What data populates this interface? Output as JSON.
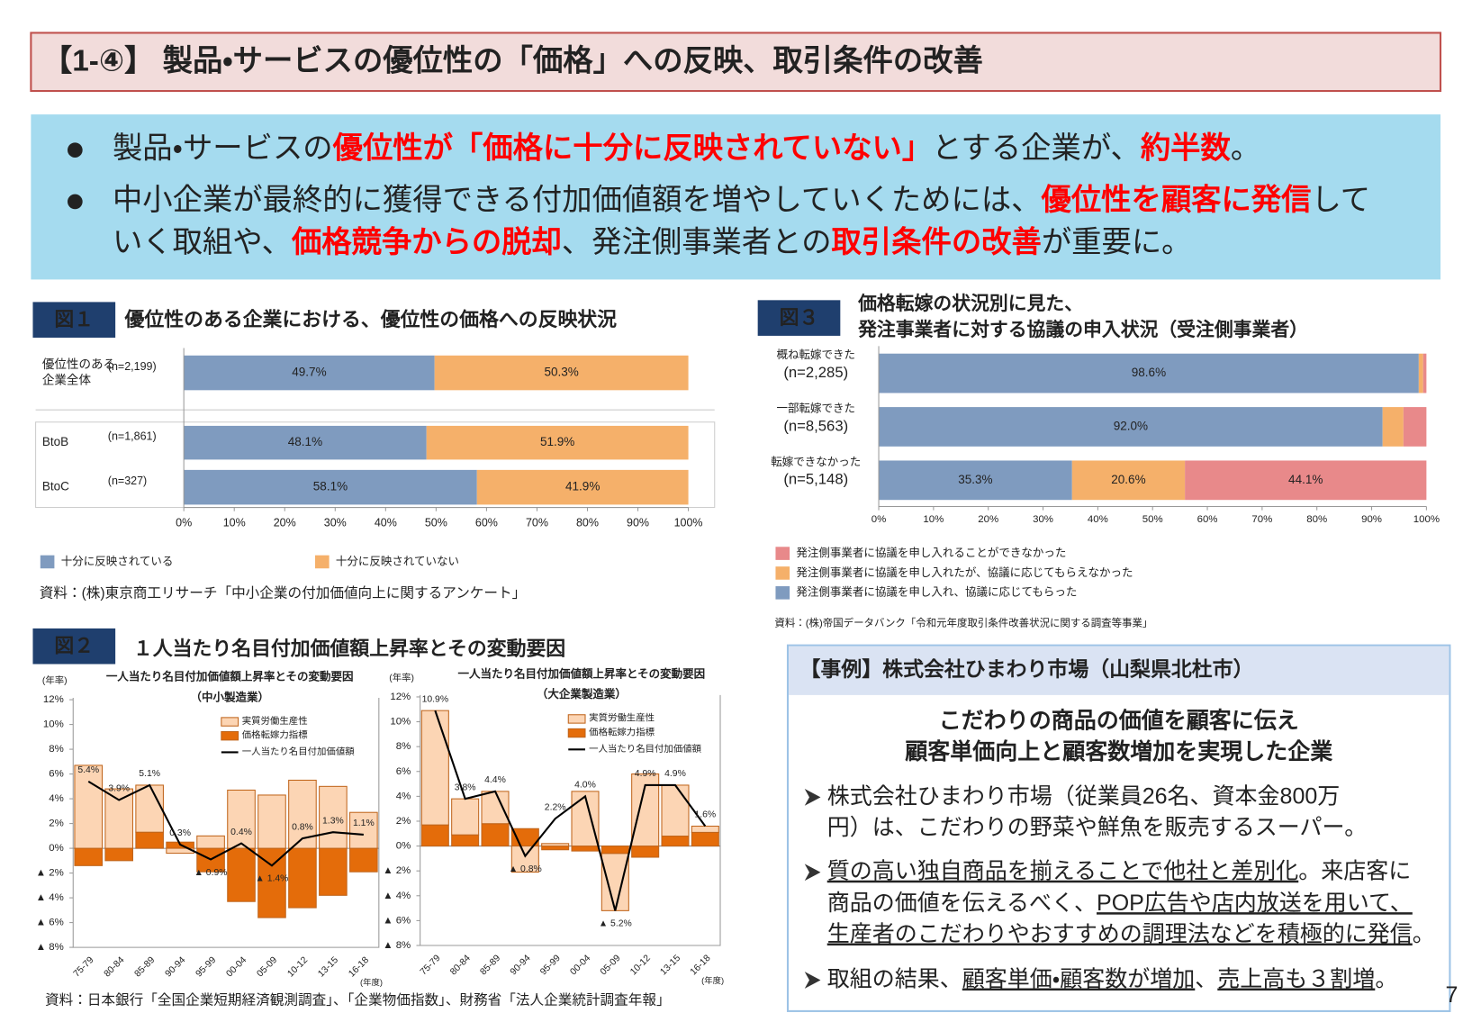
{
  "header": {
    "title": "【1-④】 製品・サービスの優位性の「価格」への反映、取引条件の改善"
  },
  "summary": {
    "bullets": [
      [
        [
          {
            "text": "製品・サービスの"
          },
          {
            "text": "優位性が「価格に十分に反映されていない」",
            "color": "#ff0000"
          },
          {
            "text": "とする企業が、"
          },
          {
            "text": "約半数",
            "color": "#ff0000"
          },
          {
            "text": "。"
          }
        ]
      ],
      [
        [
          {
            "text": "中小企業が最終的に獲得できる付加価値額を増やしていくためには、"
          },
          {
            "text": "優位性を顧客に発信",
            "color": "#ff0000"
          },
          {
            "text": "して"
          }
        ],
        [
          {
            "text": "いく取組や、"
          },
          {
            "text": "価格競争からの脱却",
            "color": "#ff0000"
          },
          {
            "text": "、発注側事業者との"
          },
          {
            "text": "取引条件の改善",
            "color": "#ff0000"
          },
          {
            "text": "が重要に。"
          }
        ]
      ]
    ]
  },
  "figures": [
    {
      "label": "図１",
      "title": [
        "優位性のある企業における、優位性の価格への反映状況"
      ],
      "source": "資料：(株)東京商工リサーチ「中小企業の付加価値向上に関するアンケート」"
    },
    {
      "label": "図３",
      "title": [
        "価格転嫁の状況別に見た、",
        "発注事業者に対する協議の申入状況（受注側事業者）"
      ],
      "source": "資料：(株)帝国データバンク「令和元年度取引条件改善状況に関する調査等事業」"
    },
    {
      "label": "図２",
      "title": [
        "１人当たり名目付加価値額上昇率とその変動要因"
      ],
      "source": "資料：日本銀行「全国企業短期経済観測調査」、「企業物価指数」、財務省「法人企業統計調査年報」"
    }
  ],
  "chart_data": [
    {
      "type": "bar",
      "orientation": "horizontal",
      "stacked": true,
      "categories": [
        [
          "優位性のある",
          "企業全体"
        ],
        [
          "BtoB"
        ],
        [
          "BtoC"
        ]
      ],
      "category_notes": [
        "(n=2,199)",
        "(n=1,861)",
        "(n=327)"
      ],
      "series": [
        {
          "name": "十分に反映されている",
          "color": "#7f9bbf",
          "values": [
            49.7,
            48.1,
            58.1
          ],
          "value_labels": [
            "49.7%",
            "48.1%",
            "58.1%"
          ]
        },
        {
          "name": "十分に反映されていない",
          "color": "#f5b06a",
          "values": [
            50.3,
            51.9,
            41.9
          ],
          "value_labels": [
            "50.3%",
            "51.9%",
            "41.9%"
          ]
        }
      ],
      "xlim": [
        0,
        100
      ],
      "xticks": [
        {
          "value": 0,
          "label": "0%"
        },
        {
          "value": 10,
          "label": "10%"
        },
        {
          "value": 20,
          "label": "20%"
        },
        {
          "value": 30,
          "label": "30%"
        },
        {
          "value": 40,
          "label": "40%"
        },
        {
          "value": 50,
          "label": "50%"
        },
        {
          "value": 60,
          "label": "60%"
        },
        {
          "value": 70,
          "label": "70%"
        },
        {
          "value": 80,
          "label": "80%"
        },
        {
          "value": 90,
          "label": "90%"
        },
        {
          "value": 100,
          "label": "100%"
        }
      ],
      "legend": "bottom"
    },
    {
      "type": "bar",
      "orientation": "horizontal",
      "stacked": true,
      "categories": [
        [
          "概ね転嫁できた",
          "(n=2,285)"
        ],
        [
          "一部転嫁できた",
          "(n=8,563)"
        ],
        [
          "転嫁できなかった",
          "(n=5,148)"
        ]
      ],
      "series": [
        {
          "name": "発注側事業者に協議を申し入れ、協議に応じてもらった",
          "color": "#7f9bbf",
          "values": [
            98.6,
            92.0,
            35.3
          ],
          "value_labels": [
            "98.6%",
            "92.0%",
            "35.3%"
          ]
        },
        {
          "name": "発注側事業者に協議を申し入れたが、協議に応じてもらえなかった",
          "color": "#f5b06a",
          "values": [
            0.8,
            3.8,
            20.6
          ],
          "value_labels": [
            null,
            null,
            "20.6%"
          ]
        },
        {
          "name": "発注側事業者に協議を申し入れることができなかった",
          "color": "#e8898a",
          "values": [
            0.6,
            4.2,
            44.1
          ],
          "value_labels": [
            null,
            null,
            "44.1%"
          ]
        }
      ],
      "xlim": [
        0,
        100
      ],
      "xticks": [
        {
          "value": 0,
          "label": "0%"
        },
        {
          "value": 10,
          "label": "10%"
        },
        {
          "value": 20,
          "label": "20%"
        },
        {
          "value": 30,
          "label": "30%"
        },
        {
          "value": 40,
          "label": "40%"
        },
        {
          "value": 50,
          "label": "50%"
        },
        {
          "value": 60,
          "label": "60%"
        },
        {
          "value": 70,
          "label": "70%"
        },
        {
          "value": 80,
          "label": "80%"
        },
        {
          "value": 90,
          "label": "90%"
        },
        {
          "value": 100,
          "label": "100%"
        }
      ],
      "legend": "bottom"
    },
    {
      "type": "combo",
      "title": [
        "一人当たり名目付加価値額上昇率とその変動要因",
        "（中小製造業）"
      ],
      "y_label": "(年率)",
      "x_label": "(年度)",
      "categories": [
        "75-79",
        "80-84",
        "85-89",
        "90-94",
        "95-99",
        "00-04",
        "05-09",
        "10-12",
        "13-15",
        "16-18"
      ],
      "series": [
        {
          "name": "実質労働生産性",
          "kind": "bar",
          "color": "#fcd5b4",
          "values": [
            6.7,
            4.8,
            3.8,
            -0.4,
            1.0,
            4.7,
            4.3,
            5.5,
            5.0,
            2.9
          ]
        },
        {
          "name": "価格転嫁力指標",
          "kind": "bar",
          "color": "#e46c0a",
          "values": [
            -1.4,
            -1.0,
            1.3,
            0.5,
            -1.9,
            -4.3,
            -5.6,
            -4.8,
            -3.8,
            -1.9
          ]
        },
        {
          "name": "一人当たり名目付加価値額",
          "kind": "line",
          "color": "#000000",
          "values": [
            5.4,
            3.9,
            5.1,
            0.3,
            -0.9,
            0.4,
            -1.4,
            0.8,
            1.3,
            1.1
          ],
          "value_labels": [
            "5.4%",
            "3.9%",
            "5.1%",
            "0.3%",
            "▲ 0.9%",
            "0.4%",
            "▲ 1.4%",
            "0.8%",
            "1.3%",
            "1.1%"
          ]
        }
      ],
      "ylim": [
        -8,
        12
      ],
      "yticks": [
        {
          "value": 12,
          "label": "12%"
        },
        {
          "value": 10,
          "label": "10%"
        },
        {
          "value": 8,
          "label": "8%"
        },
        {
          "value": 6,
          "label": "6%"
        },
        {
          "value": 4,
          "label": "4%"
        },
        {
          "value": 2,
          "label": "2%"
        },
        {
          "value": 0,
          "label": "0%"
        },
        {
          "value": -2,
          "label": "▲ 2%"
        },
        {
          "value": -4,
          "label": "▲ 4%"
        },
        {
          "value": -6,
          "label": "▲ 6%"
        },
        {
          "value": -8,
          "label": "▲ 8%"
        }
      ]
    },
    {
      "type": "combo",
      "title": [
        "一人当たり名目付加価値額上昇率とその変動要因",
        "（大企業製造業）"
      ],
      "y_label": "(年率)",
      "x_label": "(年度)",
      "categories": [
        "75-79",
        "80-84",
        "85-89",
        "90-94",
        "95-99",
        "00-04",
        "05-09",
        "10-12",
        "13-15",
        "16-18"
      ],
      "series": [
        {
          "name": "実質労働生産性",
          "kind": "bar",
          "color": "#fcd5b4",
          "values": [
            9.2,
            2.9,
            2.6,
            -2.1,
            0.2,
            4.4,
            -4.6,
            5.8,
            4.1,
            0.5
          ]
        },
        {
          "name": "価格転嫁力指標",
          "kind": "bar",
          "color": "#e46c0a",
          "values": [
            1.7,
            0.9,
            1.8,
            1.4,
            -0.3,
            -0.4,
            -0.6,
            -0.9,
            0.8,
            1.1
          ]
        },
        {
          "name": "一人当たり名目付加価値額",
          "kind": "line",
          "color": "#000000",
          "values": [
            10.9,
            3.8,
            4.4,
            -0.8,
            2.2,
            4.0,
            -5.2,
            4.9,
            4.9,
            1.6
          ],
          "value_labels": [
            "10.9%",
            "3.8%",
            "4.4%",
            "▲ 0.8%",
            "2.2%",
            "4.0%",
            "▲ 5.2%",
            "4.9%",
            "4.9%",
            "1.6%"
          ]
        }
      ],
      "ylim": [
        -8,
        12
      ],
      "yticks": [
        {
          "value": 12,
          "label": "12%"
        },
        {
          "value": 10,
          "label": "10%"
        },
        {
          "value": 8,
          "label": "8%"
        },
        {
          "value": 6,
          "label": "6%"
        },
        {
          "value": 4,
          "label": "4%"
        },
        {
          "value": 2,
          "label": "2%"
        },
        {
          "value": 0,
          "label": "0%"
        },
        {
          "value": -2,
          "label": "▲ 2%"
        },
        {
          "value": -4,
          "label": "▲ 4%"
        },
        {
          "value": -6,
          "label": "▲ 6%"
        },
        {
          "value": -8,
          "label": "▲ 8%"
        }
      ]
    }
  ],
  "case": {
    "header": "【事例】株式会社ひまわり市場（山梨県北杜市）",
    "headline": [
      "こだわりの商品の価値を顧客に伝え",
      "顧客単価向上と顧客数増加を実現した企業"
    ],
    "bullets": [
      [
        [
          {
            "text": "株式会社ひまわり市場（従業員26名、資本金800万"
          }
        ],
        [
          {
            "text": "円）は、こだわりの野菜や鮮魚を販売するスーパー。"
          }
        ]
      ],
      [
        [
          {
            "text": "質の高い独自商品を揃えることで他社と差別化",
            "underline": true
          },
          {
            "text": "。来店客に"
          }
        ],
        [
          {
            "text": "商品の価値を伝えるべく、"
          },
          {
            "text": "POP広告や店内放送を用いて、",
            "underline": true
          }
        ],
        [
          {
            "text": "生産者のこだわりやおすすめの調理法などを積極的に発信",
            "underline": true
          },
          {
            "text": "。"
          }
        ]
      ],
      [
        [
          {
            "text": "取組の結果、"
          },
          {
            "text": "顧客単価・顧客数が増加",
            "underline": true
          },
          {
            "text": "、"
          },
          {
            "text": "売上高も３割増",
            "underline": true
          },
          {
            "text": "。"
          }
        ]
      ]
    ]
  },
  "page_number": 7
}
